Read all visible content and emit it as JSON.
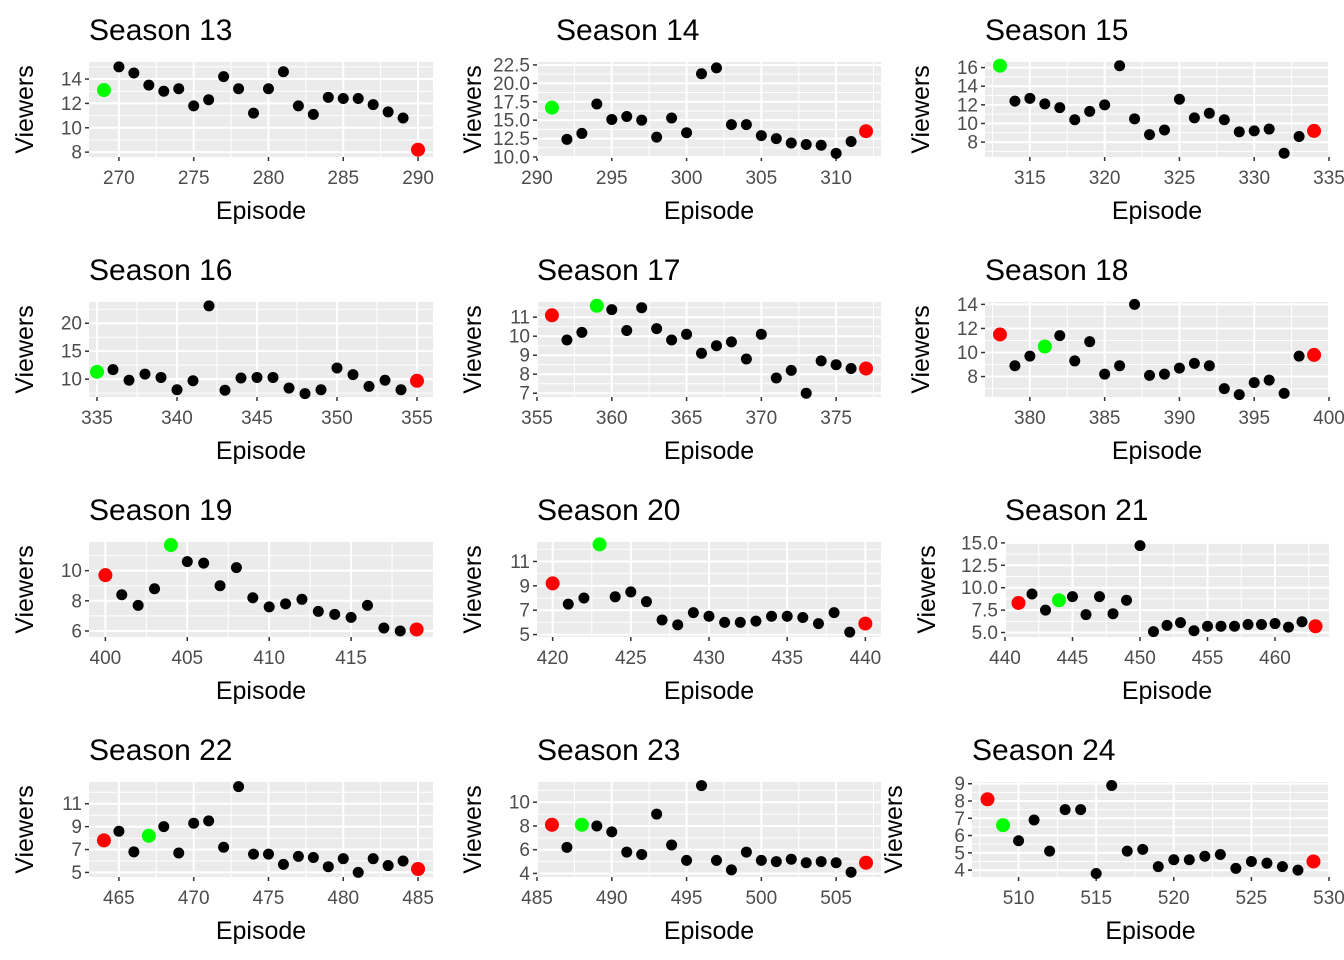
{
  "chart_data": [
    {
      "type": "scatter",
      "title": "Season 13",
      "xlabel": "Episode",
      "ylabel": "Viewers",
      "xlim": [
        268,
        291
      ],
      "ylim": [
        7.6,
        15.4
      ],
      "xticks": [
        270,
        275,
        280,
        285,
        290
      ],
      "yticks": [
        8,
        10,
        12,
        14
      ],
      "points": [
        [
          269,
          13.1
        ],
        [
          270,
          15.0
        ],
        [
          271,
          14.5
        ],
        [
          272,
          13.5
        ],
        [
          273,
          13.0
        ],
        [
          274,
          13.2
        ],
        [
          275,
          11.8
        ],
        [
          276,
          12.3
        ],
        [
          277,
          14.2
        ],
        [
          278,
          13.2
        ],
        [
          279,
          11.2
        ],
        [
          280,
          13.2
        ],
        [
          281,
          14.6
        ],
        [
          282,
          11.8
        ],
        [
          283,
          11.1
        ],
        [
          284,
          12.5
        ],
        [
          285,
          12.4
        ],
        [
          286,
          12.4
        ],
        [
          287,
          11.9
        ],
        [
          288,
          11.3
        ],
        [
          289,
          10.8
        ],
        [
          290,
          8.2
        ]
      ]
    },
    {
      "type": "scatter",
      "title": "Season 14",
      "xlabel": "Episode",
      "ylabel": "Viewers",
      "xlim": [
        290,
        313
      ],
      "ylim": [
        10,
        22.9
      ],
      "xticks": [
        290,
        295,
        300,
        305,
        310
      ],
      "yticks": [
        10.0,
        12.5,
        15.0,
        17.5,
        20.0,
        22.5
      ],
      "points": [
        [
          291,
          16.7
        ],
        [
          292,
          12.4
        ],
        [
          293,
          13.2
        ],
        [
          294,
          17.2
        ],
        [
          295,
          15.1
        ],
        [
          296,
          15.5
        ],
        [
          297,
          15.0
        ],
        [
          298,
          12.7
        ],
        [
          299,
          15.3
        ],
        [
          300,
          13.3
        ],
        [
          301,
          21.3
        ],
        [
          302,
          22.1
        ],
        [
          303,
          14.4
        ],
        [
          304,
          14.4
        ],
        [
          305,
          12.9
        ],
        [
          306,
          12.5
        ],
        [
          307,
          11.9
        ],
        [
          308,
          11.7
        ],
        [
          309,
          11.6
        ],
        [
          310,
          10.5
        ],
        [
          311,
          12.1
        ],
        [
          312,
          13.5
        ]
      ]
    },
    {
      "type": "scatter",
      "title": "Season 15",
      "xlabel": "Episode",
      "ylabel": "Viewers",
      "xlim": [
        312,
        335
      ],
      "ylim": [
        6.4,
        16.6
      ],
      "xticks": [
        315,
        320,
        325,
        330,
        335
      ],
      "yticks": [
        8,
        10,
        12,
        14,
        16
      ],
      "points": [
        [
          313,
          16.2
        ],
        [
          314,
          12.4
        ],
        [
          315,
          12.7
        ],
        [
          316,
          12.1
        ],
        [
          317,
          11.7
        ],
        [
          318,
          10.4
        ],
        [
          319,
          11.3
        ],
        [
          320,
          12.0
        ],
        [
          321,
          16.2
        ],
        [
          322,
          10.5
        ],
        [
          323,
          8.8
        ],
        [
          324,
          9.3
        ],
        [
          325,
          12.6
        ],
        [
          326,
          10.6
        ],
        [
          327,
          11.1
        ],
        [
          328,
          10.4
        ],
        [
          329,
          9.1
        ],
        [
          330,
          9.2
        ],
        [
          331,
          9.4
        ],
        [
          332,
          6.8
        ],
        [
          333,
          8.6
        ],
        [
          334,
          9.2
        ]
      ]
    },
    {
      "type": "scatter",
      "title": "Season 16",
      "xlabel": "Episode",
      "ylabel": "Viewers",
      "xlim": [
        334.5,
        356
      ],
      "ylim": [
        6.8,
        23.8
      ],
      "xticks": [
        335,
        340,
        345,
        350,
        355
      ],
      "yticks": [
        10,
        15,
        20
      ],
      "points": [
        [
          335,
          11.3
        ],
        [
          336,
          11.7
        ],
        [
          337,
          9.8
        ],
        [
          338,
          10.9
        ],
        [
          339,
          10.3
        ],
        [
          340,
          8.1
        ],
        [
          341,
          9.7
        ],
        [
          342,
          23.1
        ],
        [
          343,
          8.0
        ],
        [
          344,
          10.2
        ],
        [
          345,
          10.3
        ],
        [
          346,
          10.3
        ],
        [
          347,
          8.4
        ],
        [
          348,
          7.4
        ],
        [
          349,
          8.1
        ],
        [
          350,
          12.0
        ],
        [
          351,
          10.8
        ],
        [
          352,
          8.7
        ],
        [
          353,
          9.8
        ],
        [
          354,
          8.1
        ],
        [
          355,
          9.7
        ]
      ]
    },
    {
      "type": "scatter",
      "title": "Season 17",
      "xlabel": "Episode",
      "ylabel": "Viewers",
      "xlim": [
        355,
        378
      ],
      "ylim": [
        6.8,
        11.8
      ],
      "xticks": [
        355,
        360,
        365,
        370,
        375
      ],
      "yticks": [
        7,
        8,
        9,
        10,
        11
      ],
      "points": [
        [
          356,
          11.1
        ],
        [
          357,
          9.8
        ],
        [
          358,
          10.2
        ],
        [
          359,
          11.6
        ],
        [
          360,
          11.4
        ],
        [
          361,
          10.3
        ],
        [
          362,
          11.5
        ],
        [
          363,
          10.4
        ],
        [
          364,
          9.8
        ],
        [
          365,
          10.1
        ],
        [
          366,
          9.1
        ],
        [
          367,
          9.5
        ],
        [
          368,
          9.7
        ],
        [
          369,
          8.8
        ],
        [
          370,
          10.1
        ],
        [
          371,
          7.8
        ],
        [
          372,
          8.2
        ],
        [
          373,
          7.0
        ],
        [
          374,
          8.7
        ],
        [
          375,
          8.5
        ],
        [
          376,
          8.3
        ],
        [
          377,
          8.3
        ]
      ]
    },
    {
      "type": "scatter",
      "title": "Season 18",
      "xlabel": "Episode",
      "ylabel": "Viewers",
      "xlim": [
        377,
        400
      ],
      "ylim": [
        6.3,
        14.2
      ],
      "xticks": [
        380,
        385,
        390,
        395,
        400
      ],
      "yticks": [
        8,
        10,
        12,
        14
      ],
      "points": [
        [
          378,
          11.5
        ],
        [
          379,
          8.9
        ],
        [
          380,
          9.7
        ],
        [
          381,
          10.5
        ],
        [
          382,
          11.4
        ],
        [
          383,
          9.3
        ],
        [
          384,
          10.9
        ],
        [
          385,
          8.2
        ],
        [
          386,
          8.9
        ],
        [
          387,
          14.0
        ],
        [
          388,
          8.1
        ],
        [
          389,
          8.2
        ],
        [
          390,
          8.7
        ],
        [
          391,
          9.1
        ],
        [
          392,
          8.9
        ],
        [
          393,
          7.0
        ],
        [
          394,
          6.5
        ],
        [
          395,
          7.5
        ],
        [
          396,
          7.7
        ],
        [
          397,
          6.6
        ],
        [
          398,
          9.7
        ],
        [
          399,
          9.8
        ]
      ]
    },
    {
      "type": "scatter",
      "title": "Season 19",
      "xlabel": "Episode",
      "ylabel": "Viewers",
      "xlim": [
        399,
        420
      ],
      "ylim": [
        5.6,
        11.9
      ],
      "xticks": [
        400,
        405,
        410,
        415
      ],
      "yticks": [
        6,
        8,
        10
      ],
      "points": [
        [
          400,
          9.7
        ],
        [
          401,
          8.4
        ],
        [
          402,
          7.7
        ],
        [
          403,
          8.8
        ],
        [
          404,
          11.7
        ],
        [
          405,
          10.6
        ],
        [
          406,
          10.5
        ],
        [
          407,
          9.0
        ],
        [
          408,
          10.2
        ],
        [
          409,
          8.2
        ],
        [
          410,
          7.6
        ],
        [
          411,
          7.8
        ],
        [
          412,
          8.1
        ],
        [
          413,
          7.3
        ],
        [
          414,
          7.1
        ],
        [
          415,
          6.9
        ],
        [
          416,
          7.7
        ],
        [
          417,
          6.2
        ],
        [
          418,
          6.0
        ],
        [
          419,
          6.1
        ]
      ]
    },
    {
      "type": "scatter",
      "title": "Season 20",
      "xlabel": "Episode",
      "ylabel": "Viewers",
      "xlim": [
        419,
        441
      ],
      "ylim": [
        4.8,
        12.6
      ],
      "xticks": [
        420,
        425,
        430,
        435,
        440
      ],
      "yticks": [
        5,
        7,
        9,
        11
      ],
      "points": [
        [
          420,
          9.2
        ],
        [
          421,
          7.5
        ],
        [
          422,
          8.0
        ],
        [
          423,
          12.4
        ],
        [
          424,
          8.1
        ],
        [
          425,
          8.5
        ],
        [
          426,
          7.7
        ],
        [
          427,
          6.2
        ],
        [
          428,
          5.8
        ],
        [
          429,
          6.8
        ],
        [
          430,
          6.5
        ],
        [
          431,
          6.0
        ],
        [
          432,
          6.0
        ],
        [
          433,
          6.1
        ],
        [
          434,
          6.5
        ],
        [
          435,
          6.5
        ],
        [
          436,
          6.4
        ],
        [
          437,
          5.9
        ],
        [
          438,
          6.8
        ],
        [
          439,
          5.2
        ],
        [
          440,
          5.9
        ]
      ]
    },
    {
      "type": "scatter",
      "title": "Season 21",
      "xlabel": "Episode",
      "ylabel": "Viewers",
      "xlim": [
        440,
        464
      ],
      "ylim": [
        4.5,
        15.1
      ],
      "xticks": [
        440,
        445,
        450,
        455,
        460
      ],
      "yticks": [
        5.0,
        7.5,
        10.0,
        12.5,
        15.0
      ],
      "points": [
        [
          441,
          8.3
        ],
        [
          442,
          9.3
        ],
        [
          443,
          7.5
        ],
        [
          444,
          8.6
        ],
        [
          445,
          9.0
        ],
        [
          446,
          7.0
        ],
        [
          447,
          9.0
        ],
        [
          448,
          7.1
        ],
        [
          449,
          8.6
        ],
        [
          450,
          14.7
        ],
        [
          451,
          5.1
        ],
        [
          452,
          5.8
        ],
        [
          453,
          6.1
        ],
        [
          454,
          5.2
        ],
        [
          455,
          5.7
        ],
        [
          456,
          5.7
        ],
        [
          457,
          5.7
        ],
        [
          458,
          5.9
        ],
        [
          459,
          5.9
        ],
        [
          460,
          6.0
        ],
        [
          461,
          5.6
        ],
        [
          462,
          6.2
        ],
        [
          463,
          5.7
        ]
      ]
    },
    {
      "type": "scatter",
      "title": "Season 22",
      "xlabel": "Episode",
      "ylabel": "Viewers",
      "xlim": [
        463,
        486
      ],
      "ylim": [
        4.6,
        12.9
      ],
      "xticks": [
        465,
        470,
        475,
        480,
        485
      ],
      "yticks": [
        5,
        7,
        9,
        11
      ],
      "points": [
        [
          464,
          7.8
        ],
        [
          465,
          8.6
        ],
        [
          466,
          6.8
        ],
        [
          467,
          8.2
        ],
        [
          468,
          9.0
        ],
        [
          469,
          6.7
        ],
        [
          470,
          9.3
        ],
        [
          471,
          9.5
        ],
        [
          472,
          7.2
        ],
        [
          473,
          12.5
        ],
        [
          474,
          6.6
        ],
        [
          475,
          6.6
        ],
        [
          476,
          5.7
        ],
        [
          477,
          6.4
        ],
        [
          478,
          6.3
        ],
        [
          479,
          5.5
        ],
        [
          480,
          6.2
        ],
        [
          481,
          5.0
        ],
        [
          482,
          6.2
        ],
        [
          483,
          5.6
        ],
        [
          484,
          6.0
        ],
        [
          485,
          5.3
        ]
      ]
    },
    {
      "type": "scatter",
      "title": "Season 23",
      "xlabel": "Episode",
      "ylabel": "Viewers",
      "xlim": [
        485,
        508
      ],
      "ylim": [
        3.7,
        11.7
      ],
      "xticks": [
        485,
        490,
        495,
        500,
        505
      ],
      "yticks": [
        4,
        6,
        8,
        10
      ],
      "points": [
        [
          486,
          8.1
        ],
        [
          487,
          6.2
        ],
        [
          488,
          8.1
        ],
        [
          489,
          8.0
        ],
        [
          490,
          7.5
        ],
        [
          491,
          5.8
        ],
        [
          492,
          5.6
        ],
        [
          493,
          9.0
        ],
        [
          494,
          6.4
        ],
        [
          495,
          5.1
        ],
        [
          496,
          11.4
        ],
        [
          497,
          5.1
        ],
        [
          498,
          4.3
        ],
        [
          499,
          5.8
        ],
        [
          500,
          5.1
        ],
        [
          501,
          5.0
        ],
        [
          502,
          5.2
        ],
        [
          503,
          4.9
        ],
        [
          504,
          5.0
        ],
        [
          505,
          4.9
        ],
        [
          506,
          4.1
        ],
        [
          507,
          4.9
        ]
      ]
    },
    {
      "type": "scatter",
      "title": "Season 24",
      "xlabel": "Episode",
      "ylabel": "Viewers",
      "xlim": [
        507,
        530
      ],
      "ylim": [
        3.6,
        9.1
      ],
      "xticks": [
        510,
        515,
        520,
        525,
        530
      ],
      "yticks": [
        4,
        5,
        6,
        7,
        8,
        9
      ],
      "points": [
        [
          508,
          8.1
        ],
        [
          509,
          6.6
        ],
        [
          510,
          5.7
        ],
        [
          511,
          6.9
        ],
        [
          512,
          5.1
        ],
        [
          513,
          7.5
        ],
        [
          514,
          7.5
        ],
        [
          515,
          3.8
        ],
        [
          516,
          8.9
        ],
        [
          517,
          5.1
        ],
        [
          518,
          5.2
        ],
        [
          519,
          4.2
        ],
        [
          520,
          4.6
        ],
        [
          521,
          4.6
        ],
        [
          522,
          4.8
        ],
        [
          523,
          4.9
        ],
        [
          524,
          4.1
        ],
        [
          525,
          4.5
        ],
        [
          526,
          4.4
        ],
        [
          527,
          4.2
        ],
        [
          528,
          4.0
        ],
        [
          529,
          4.5
        ]
      ]
    }
  ],
  "colors": {
    "panel_bg": "#EBEBEB",
    "grid": "#FFFFFF",
    "tick_text": "#4D4D4D",
    "point": "#000000",
    "highlight_green": "#00FF00",
    "highlight_red": "#FF0000"
  }
}
